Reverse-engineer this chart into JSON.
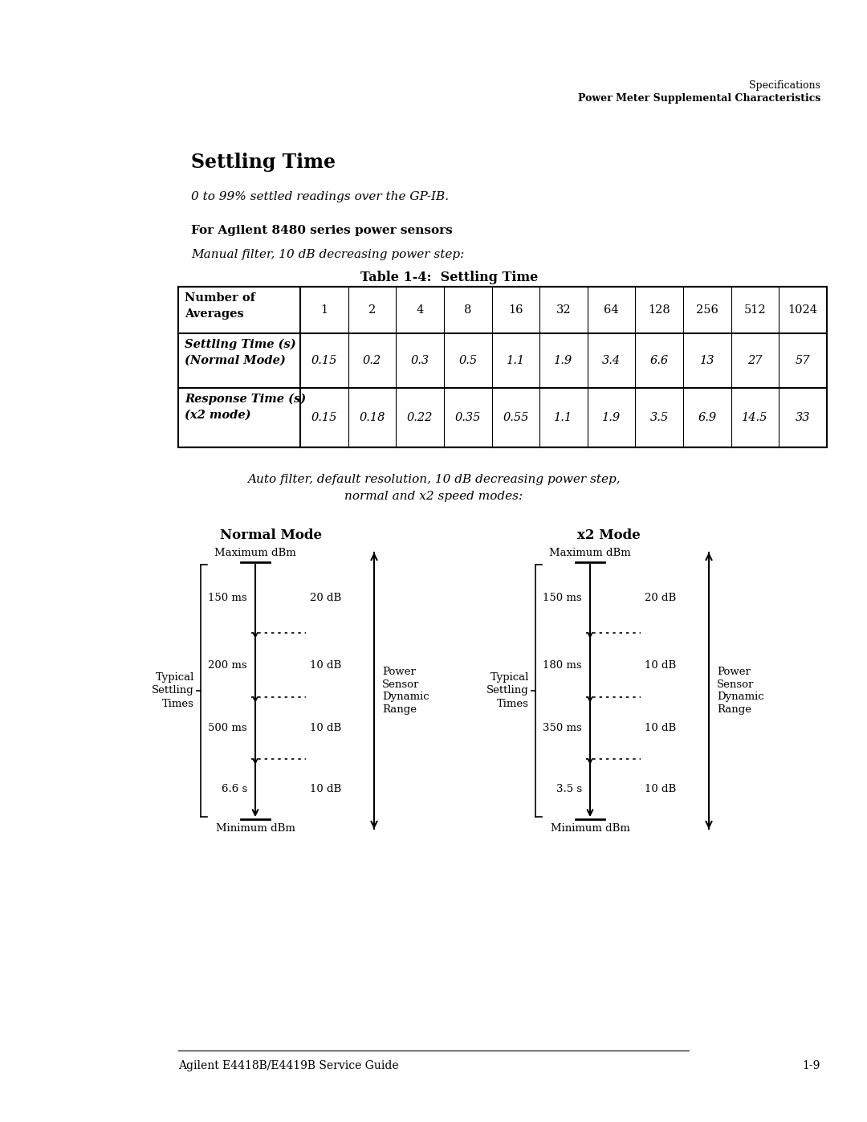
{
  "page_header_line1": "Specifications",
  "page_header_line2": "Power Meter Supplemental Characteristics",
  "section_title": "Settling Time",
  "subtitle_italic": "0 to 99% settled readings over the GP-IB.",
  "subsection_bold": "For Agilent 8480 series power sensors",
  "manual_filter_italic": "Manual filter, 10 dB decreasing power step:",
  "table_title": "Table 1-4:  Settling Time",
  "table_col_values": [
    "1",
    "2",
    "4",
    "8",
    "16",
    "32",
    "64",
    "128",
    "256",
    "512",
    "1024"
  ],
  "table_row1_values": [
    "0.15",
    "0.2",
    "0.3",
    "0.5",
    "1.1",
    "1.9",
    "3.4",
    "6.6",
    "13",
    "27",
    "57"
  ],
  "table_row2_values": [
    "0.15",
    "0.18",
    "0.22",
    "0.35",
    "0.55",
    "1.1",
    "1.9",
    "3.5",
    "6.9",
    "14.5",
    "33"
  ],
  "auto_filter_italic": "Auto filter, default resolution, 10 dB decreasing power step,\nnormal and x2 speed modes:",
  "normal_mode_title": "Normal Mode",
  "x2_mode_title": "x2 Mode",
  "normal_times": [
    "150 ms",
    "200 ms",
    "500 ms",
    "6.6 s"
  ],
  "normal_dbs": [
    "20 dB",
    "10 dB",
    "10 dB",
    "10 dB"
  ],
  "x2_times": [
    "150 ms",
    "180 ms",
    "350 ms",
    "3.5 s"
  ],
  "x2_dbs": [
    "20 dB",
    "10 dB",
    "10 dB",
    "10 dB"
  ],
  "typical_label": "Typical\nSettling\nTimes",
  "power_sensor_label": "Power\nSensor\nDynamic\nRange",
  "max_dbm_label": "Maximum dBm",
  "min_dbm_label": "Minimum dBm",
  "footer_line": "Agilent E4418B/E4419B Service Guide",
  "footer_page": "1-9",
  "bg_color": "#ffffff",
  "text_color": "#000000"
}
